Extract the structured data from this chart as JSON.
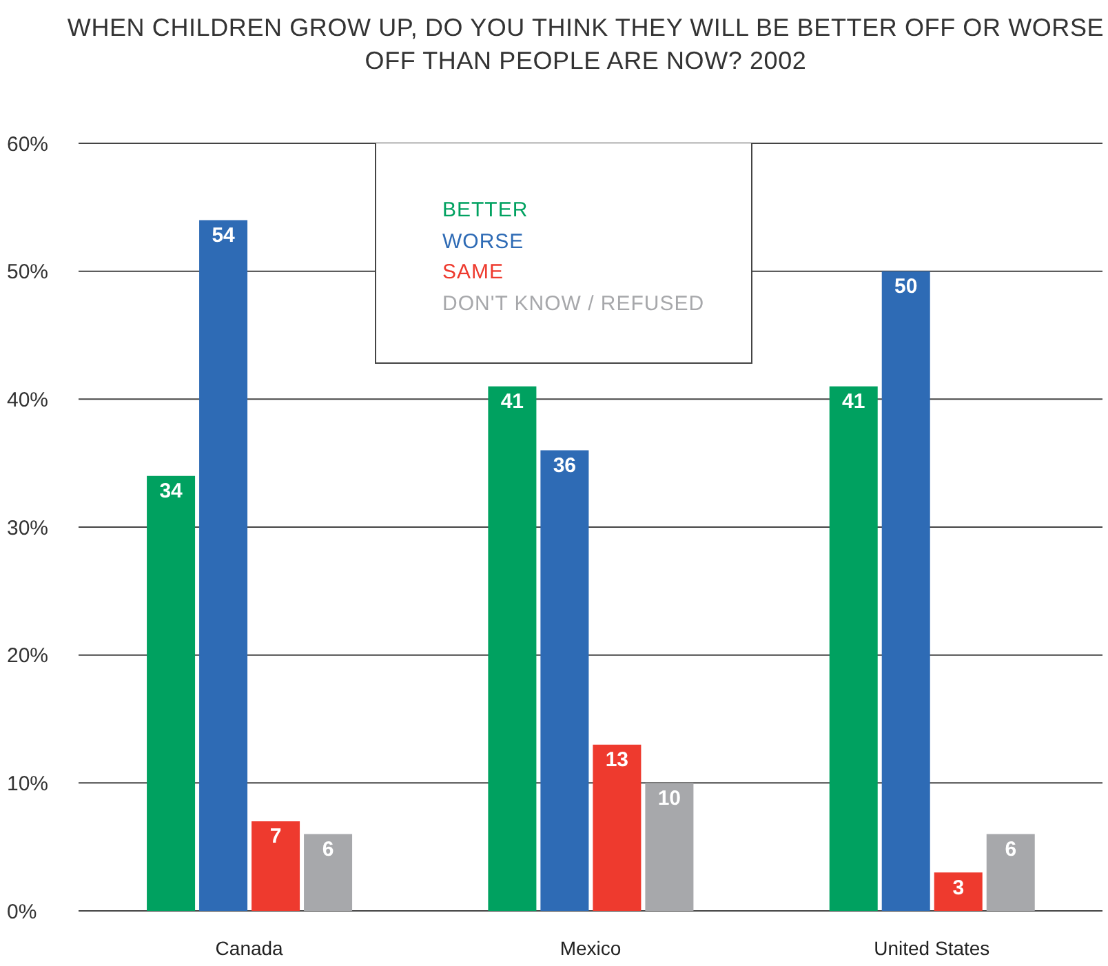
{
  "chart_data": {
    "type": "bar",
    "title": "WHEN CHILDREN GROW UP, DO YOU THINK THEY WILL BE BETTER OFF OR WORSE OFF THAN PEOPLE ARE NOW?  2002",
    "categories": [
      "Canada",
      "Mexico",
      "United States"
    ],
    "series": [
      {
        "name": "BETTER",
        "color": "#00a160",
        "values": [
          34,
          41,
          41
        ]
      },
      {
        "name": "WORSE",
        "color": "#2e6bb5",
        "values": [
          54,
          36,
          50
        ]
      },
      {
        "name": "SAME",
        "color": "#ee3a2e",
        "values": [
          7,
          13,
          3
        ]
      },
      {
        "name": "DON'T KNOW / REFUSED",
        "color": "#a7a8ab",
        "values": [
          6,
          10,
          6
        ]
      }
    ],
    "ylim": [
      0,
      60
    ],
    "yticks": [
      {
        "value": 0,
        "label": "0%"
      },
      {
        "value": 10,
        "label": "10%"
      },
      {
        "value": 20,
        "label": "20%"
      },
      {
        "value": 30,
        "label": "30%"
      },
      {
        "value": 40,
        "label": "40%"
      },
      {
        "value": 50,
        "label": "50%"
      },
      {
        "value": 60,
        "label": "60%"
      }
    ],
    "grid": "y",
    "legend": "top",
    "data_labels": true
  }
}
